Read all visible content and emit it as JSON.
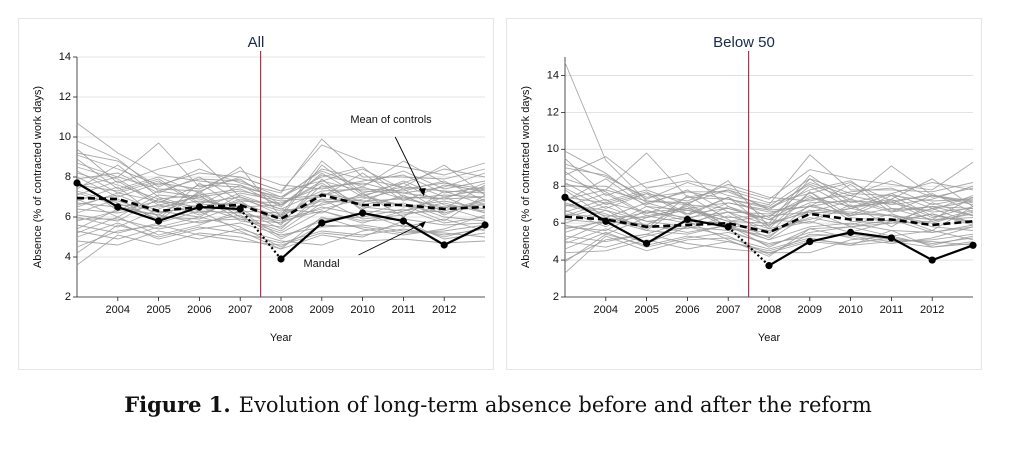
{
  "figure": {
    "label": "Figure 1.",
    "caption": "Evolution of long-term absence before and after the reform"
  },
  "colors": {
    "mandal": "#000000",
    "controls_mean": "#000000",
    "controls": "#9a9a9a",
    "reform_line": "#b0324e",
    "grid": "#dcdcdc",
    "title": "#1a2a4a"
  },
  "chart_data": [
    {
      "type": "line",
      "title": "All",
      "xlabel": "Year",
      "ylabel": "Absence (% of contracted work days)",
      "x": [
        2003,
        2004,
        2005,
        2006,
        2007,
        2008,
        2009,
        2010,
        2011,
        2012,
        2013
      ],
      "xticks": [
        2004,
        2005,
        2006,
        2007,
        2008,
        2009,
        2010,
        2011,
        2012
      ],
      "xlim": [
        2003,
        2013
      ],
      "ylim": [
        2,
        14
      ],
      "yticks": [
        2,
        4,
        6,
        8,
        10,
        12,
        14
      ],
      "grid": true,
      "reform_x": 2007.5,
      "annotations": [
        {
          "text": "Mean of controls",
          "series": "Mean of controls"
        },
        {
          "text": "Mandal",
          "series": "Mandal"
        }
      ],
      "series": [
        {
          "name": "Mandal",
          "style": "solid-bold-markers",
          "values": [
            7.7,
            6.5,
            5.8,
            6.5,
            6.4,
            3.9,
            5.7,
            6.2,
            5.8,
            4.6,
            5.6
          ]
        },
        {
          "name": "Mean of controls",
          "style": "dashed-bold",
          "values": [
            6.95,
            6.9,
            6.3,
            6.5,
            6.6,
            5.9,
            7.1,
            6.6,
            6.6,
            6.4,
            6.5
          ]
        }
      ],
      "control_units": [
        [
          7.0,
          6.8,
          6.2,
          6.6,
          6.7,
          6.0,
          7.2,
          6.8,
          6.9,
          6.5,
          6.6
        ],
        [
          8.2,
          7.6,
          6.9,
          7.1,
          7.4,
          6.6,
          7.8,
          7.3,
          7.2,
          6.9,
          7.0
        ],
        [
          5.9,
          5.9,
          5.4,
          5.8,
          5.9,
          5.2,
          6.3,
          5.8,
          5.9,
          5.6,
          5.7
        ],
        [
          10.7,
          9.2,
          8.1,
          7.8,
          7.6,
          6.9,
          8.4,
          7.9,
          7.5,
          7.3,
          7.2
        ],
        [
          3.6,
          5.1,
          4.6,
          5.2,
          5.0,
          4.4,
          5.1,
          4.8,
          4.9,
          4.7,
          4.8
        ],
        [
          9.1,
          8.4,
          7.6,
          8.2,
          8.0,
          7.3,
          9.6,
          8.8,
          8.5,
          8.1,
          8.7
        ],
        [
          6.5,
          7.2,
          6.8,
          6.1,
          6.9,
          6.3,
          6.6,
          7.1,
          6.5,
          6.8,
          6.4
        ],
        [
          7.8,
          6.3,
          7.3,
          7.0,
          6.2,
          5.7,
          7.6,
          6.4,
          7.1,
          6.1,
          6.9
        ],
        [
          5.2,
          6.0,
          5.1,
          5.6,
          6.3,
          5.0,
          5.8,
          6.2,
          5.5,
          5.9,
          5.3
        ],
        [
          8.7,
          8.0,
          9.7,
          7.5,
          7.9,
          6.6,
          8.1,
          7.6,
          8.3,
          7.4,
          7.8
        ],
        [
          6.0,
          5.5,
          6.4,
          7.1,
          5.8,
          5.5,
          6.9,
          5.9,
          6.1,
          6.5,
          5.9
        ],
        [
          7.4,
          8.6,
          7.0,
          6.4,
          7.2,
          6.8,
          7.0,
          8.2,
          6.8,
          7.6,
          7.3
        ],
        [
          4.8,
          4.6,
          5.3,
          4.9,
          5.4,
          4.8,
          4.6,
          5.3,
          5.6,
          5.0,
          5.5
        ],
        [
          9.4,
          7.7,
          8.4,
          8.9,
          7.0,
          6.1,
          8.8,
          7.2,
          7.7,
          8.4,
          8.0
        ],
        [
          6.8,
          7.5,
          6.0,
          5.9,
          6.6,
          5.9,
          6.4,
          6.9,
          7.4,
          6.2,
          6.7
        ],
        [
          5.6,
          5.2,
          5.7,
          6.3,
          5.3,
          4.4,
          6.0,
          5.4,
          5.1,
          5.4,
          6.1
        ],
        [
          8.0,
          7.0,
          7.7,
          7.4,
          8.3,
          7.6,
          7.4,
          7.8,
          8.1,
          7.2,
          7.5
        ],
        [
          7.2,
          6.6,
          6.5,
          6.8,
          6.5,
          6.6,
          7.7,
          6.5,
          6.3,
          7.0,
          6.2
        ],
        [
          6.2,
          6.9,
          5.8,
          7.3,
          6.0,
          5.3,
          6.7,
          7.0,
          6.6,
          5.8,
          7.1
        ],
        [
          9.8,
          8.9,
          7.3,
          7.9,
          7.8,
          7.0,
          8.3,
          7.5,
          8.8,
          7.7,
          7.4
        ],
        [
          5.0,
          5.7,
          4.9,
          5.4,
          5.7,
          5.1,
          5.5,
          5.6,
          5.3,
          5.2,
          5.0
        ],
        [
          7.6,
          7.3,
          7.9,
          6.7,
          7.0,
          6.4,
          7.3,
          7.4,
          7.3,
          7.8,
          6.8
        ],
        [
          6.4,
          6.2,
          6.6,
          6.2,
          6.8,
          5.6,
          7.9,
          6.3,
          6.2,
          6.3,
          6.9
        ],
        [
          8.5,
          7.9,
          6.7,
          7.6,
          7.5,
          7.0,
          8.0,
          8.5,
          7.0,
          6.9,
          7.7
        ],
        [
          5.4,
          6.4,
          6.1,
          5.7,
          6.1,
          4.9,
          5.9,
          6.0,
          6.4,
          5.7,
          6.0
        ],
        [
          6.9,
          6.0,
          7.1,
          6.9,
          6.3,
          6.2,
          6.8,
          6.7,
          7.7,
          6.6,
          6.3
        ],
        [
          7.9,
          8.2,
          7.2,
          8.0,
          6.8,
          6.7,
          7.5,
          7.7,
          7.2,
          7.5,
          8.2
        ],
        [
          4.5,
          5.3,
          5.6,
          5.1,
          4.8,
          4.6,
          5.2,
          5.0,
          5.8,
          4.9,
          5.2
        ],
        [
          8.9,
          7.4,
          8.0,
          7.2,
          8.5,
          6.0,
          8.6,
          7.1,
          7.5,
          8.6,
          7.1
        ],
        [
          6.6,
          7.1,
          6.3,
          6.0,
          7.1,
          6.4,
          6.2,
          7.2,
          6.0,
          7.3,
          6.6
        ],
        [
          7.3,
          6.7,
          5.9,
          7.7,
          6.4,
          5.4,
          7.2,
          6.6,
          7.0,
          6.4,
          7.6
        ],
        [
          5.8,
          6.3,
          6.8,
          6.5,
          5.9,
          5.7,
          6.5,
          6.1,
          6.7,
          6.0,
          5.8
        ],
        [
          9.2,
          8.8,
          7.5,
          8.4,
          7.7,
          7.2,
          9.9,
          8.0,
          8.0,
          7.9,
          8.4
        ],
        [
          6.1,
          5.8,
          6.9,
          6.3,
          6.2,
          5.8,
          6.3,
          5.7,
          6.3,
          6.7,
          6.2
        ],
        [
          7.1,
          7.8,
          6.6,
          7.0,
          7.3,
          6.9,
          7.1,
          7.5,
          6.9,
          7.1,
          7.0
        ],
        [
          5.3,
          4.9,
          5.5,
          6.0,
          5.5,
          4.5,
          5.6,
          5.5,
          5.2,
          5.3,
          5.6
        ],
        [
          8.3,
          7.2,
          7.8,
          6.6,
          7.6,
          6.5,
          8.2,
          7.0,
          7.8,
          7.0,
          7.4
        ],
        [
          6.7,
          6.5,
          6.1,
          7.2,
          6.0,
          6.1,
          6.9,
          6.8,
          6.6,
          6.2,
          6.8
        ],
        [
          7.5,
          8.0,
          7.4,
          7.3,
          8.0,
          7.3,
          7.8,
          8.4,
          7.4,
          7.7,
          7.2
        ],
        [
          4.2,
          5.6,
          5.0,
          5.5,
          5.2,
          4.7,
          5.3,
          5.1,
          5.4,
          5.1,
          5.4
        ]
      ]
    },
    {
      "type": "line",
      "title": "Below 50",
      "xlabel": "Year",
      "ylabel": "Absence (% of contracted work days)",
      "x": [
        2003,
        2004,
        2005,
        2006,
        2007,
        2008,
        2009,
        2010,
        2011,
        2012,
        2013
      ],
      "xticks": [
        2004,
        2005,
        2006,
        2007,
        2008,
        2009,
        2010,
        2011,
        2012
      ],
      "xlim": [
        2003,
        2013
      ],
      "ylim": [
        2,
        15
      ],
      "yticks": [
        2,
        4,
        6,
        8,
        10,
        12,
        14
      ],
      "grid": true,
      "reform_x": 2007.5,
      "annotations": [],
      "series": [
        {
          "name": "Mandal",
          "style": "solid-bold-markers",
          "values": [
            7.4,
            6.1,
            4.9,
            6.2,
            5.8,
            3.7,
            5.0,
            5.5,
            5.2,
            4.0,
            4.8
          ]
        },
        {
          "name": "Mean of controls",
          "style": "dashed-bold",
          "values": [
            6.35,
            6.2,
            5.8,
            5.9,
            6.0,
            5.5,
            6.5,
            6.2,
            6.2,
            5.9,
            6.1
          ]
        }
      ],
      "control_units": [
        [
          14.7,
          9.4,
          7.2,
          7.0,
          6.8,
          6.2,
          7.4,
          6.9,
          7.1,
          6.6,
          6.8
        ],
        [
          9.2,
          8.5,
          7.4,
          7.7,
          7.3,
          6.9,
          8.4,
          7.6,
          7.5,
          7.2,
          7.3
        ],
        [
          3.3,
          5.3,
          4.5,
          5.1,
          5.2,
          4.6,
          5.2,
          4.8,
          5.0,
          4.7,
          4.9
        ],
        [
          7.0,
          6.7,
          6.1,
          6.3,
          6.6,
          5.9,
          6.9,
          6.5,
          6.4,
          6.2,
          6.3
        ],
        [
          8.6,
          9.6,
          7.9,
          8.3,
          7.9,
          7.3,
          8.9,
          8.4,
          8.1,
          7.8,
          9.3
        ],
        [
          5.5,
          6.2,
          5.6,
          5.4,
          5.9,
          5.1,
          5.8,
          6.0,
          5.6,
          5.5,
          5.9
        ],
        [
          6.4,
          7.1,
          6.6,
          6.8,
          6.1,
          6.4,
          6.6,
          7.2,
          6.6,
          6.9,
          6.4
        ],
        [
          7.8,
          6.3,
          7.1,
          6.5,
          7.4,
          5.7,
          7.7,
          6.4,
          7.3,
          6.3,
          6.9
        ],
        [
          4.9,
          5.7,
          4.9,
          5.8,
          5.6,
          4.8,
          5.5,
          5.8,
          5.3,
          5.6,
          5.1
        ],
        [
          8.1,
          7.8,
          9.8,
          7.4,
          7.8,
          6.7,
          8.2,
          7.5,
          8.3,
          7.4,
          7.9
        ],
        [
          5.9,
          5.4,
          6.3,
          6.9,
          5.7,
          5.3,
          6.7,
          5.8,
          6.0,
          6.5,
          5.9
        ],
        [
          7.2,
          8.4,
          6.9,
          6.2,
          7.1,
          6.6,
          6.9,
          8.1,
          6.6,
          7.5,
          7.1
        ],
        [
          4.4,
          4.5,
          5.1,
          4.6,
          5.0,
          4.4,
          4.4,
          5.1,
          5.3,
          4.8,
          5.3
        ],
        [
          9.5,
          7.5,
          8.2,
          8.7,
          6.9,
          6.0,
          8.6,
          7.1,
          7.6,
          8.2,
          7.8
        ],
        [
          6.6,
          7.3,
          5.8,
          5.7,
          6.4,
          5.7,
          6.2,
          6.8,
          7.2,
          6.1,
          6.5
        ],
        [
          5.3,
          5.0,
          5.4,
          6.1,
          5.1,
          4.2,
          5.7,
          5.2,
          4.9,
          5.2,
          5.8
        ],
        [
          7.9,
          6.8,
          7.6,
          7.2,
          8.1,
          7.4,
          7.2,
          7.7,
          7.9,
          7.0,
          7.4
        ],
        [
          7.0,
          6.4,
          6.3,
          6.7,
          6.3,
          6.4,
          7.5,
          6.3,
          6.1,
          6.8,
          6.0
        ],
        [
          6.0,
          6.7,
          5.6,
          7.1,
          5.8,
          5.1,
          6.5,
          6.8,
          6.4,
          5.6,
          6.9
        ],
        [
          9.9,
          8.7,
          7.1,
          7.7,
          7.7,
          6.8,
          8.1,
          7.3,
          9.1,
          7.5,
          7.2
        ],
        [
          4.6,
          5.5,
          4.7,
          5.2,
          5.5,
          4.9,
          5.3,
          5.4,
          5.1,
          5.0,
          4.8
        ],
        [
          7.4,
          7.1,
          7.7,
          6.5,
          6.8,
          6.2,
          7.1,
          7.2,
          7.1,
          7.6,
          6.6
        ],
        [
          6.2,
          6.0,
          6.4,
          6.0,
          6.6,
          5.4,
          7.7,
          6.1,
          6.0,
          6.1,
          6.7
        ],
        [
          8.4,
          7.7,
          6.5,
          7.4,
          7.3,
          6.8,
          7.8,
          8.3,
          6.8,
          6.7,
          7.5
        ],
        [
          5.1,
          6.1,
          5.9,
          5.5,
          5.9,
          4.7,
          5.7,
          5.8,
          6.2,
          5.5,
          5.8
        ],
        [
          6.7,
          5.8,
          6.9,
          6.7,
          6.1,
          6.0,
          6.6,
          6.5,
          7.5,
          6.4,
          6.1
        ],
        [
          8.0,
          8.0,
          7.0,
          7.8,
          6.6,
          6.5,
          7.3,
          7.5,
          7.0,
          7.3,
          8.0
        ],
        [
          4.0,
          5.1,
          5.4,
          4.9,
          4.6,
          4.4,
          5.0,
          4.8,
          5.6,
          4.7,
          5.0
        ],
        [
          8.8,
          7.2,
          7.8,
          7.0,
          8.3,
          5.8,
          8.4,
          6.9,
          7.3,
          8.4,
          6.9
        ],
        [
          6.3,
          6.9,
          6.1,
          5.8,
          6.9,
          6.2,
          6.0,
          7.0,
          5.8,
          7.1,
          6.4
        ],
        [
          7.1,
          6.5,
          5.7,
          7.5,
          6.2,
          5.2,
          7.0,
          6.4,
          6.8,
          6.2,
          7.4
        ],
        [
          5.7,
          6.1,
          6.6,
          6.3,
          5.7,
          5.5,
          6.3,
          5.9,
          6.5,
          5.8,
          5.6
        ],
        [
          9.0,
          8.6,
          7.3,
          8.2,
          7.5,
          7.0,
          9.7,
          7.8,
          7.8,
          7.7,
          8.2
        ],
        [
          5.8,
          5.6,
          6.7,
          6.1,
          6.0,
          5.6,
          6.1,
          5.5,
          6.1,
          6.5,
          6.0
        ],
        [
          6.9,
          7.6,
          6.4,
          6.8,
          7.1,
          6.7,
          6.9,
          7.3,
          6.7,
          6.9,
          6.8
        ],
        [
          5.0,
          4.7,
          5.3,
          5.8,
          5.3,
          4.3,
          5.4,
          5.3,
          5.0,
          5.1,
          5.4
        ],
        [
          8.2,
          7.0,
          7.6,
          6.4,
          7.4,
          6.3,
          8.0,
          6.8,
          7.6,
          6.8,
          7.2
        ],
        [
          6.5,
          6.3,
          5.9,
          7.0,
          5.8,
          5.9,
          6.7,
          6.6,
          6.4,
          6.0,
          6.6
        ],
        [
          7.3,
          7.8,
          7.2,
          7.1,
          7.8,
          7.1,
          7.6,
          8.2,
          7.2,
          7.5,
          7.0
        ],
        [
          3.9,
          5.4,
          4.8,
          5.3,
          5.0,
          4.5,
          5.1,
          4.9,
          5.2,
          4.9,
          5.2
        ]
      ]
    }
  ]
}
